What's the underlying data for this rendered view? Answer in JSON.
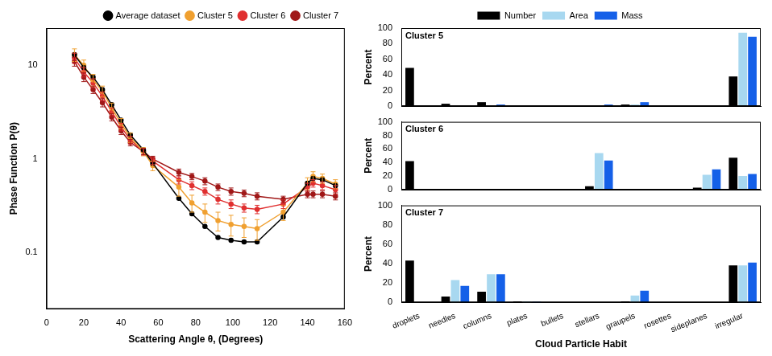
{
  "chart_data": [
    {
      "type": "line",
      "x_label": "Scattering Angle θ, (Degrees)",
      "y_label": "Phase Function P(θ)",
      "x": [
        15,
        20,
        25,
        30,
        35,
        40,
        45,
        52,
        57,
        71,
        78,
        85,
        92,
        99,
        106,
        113,
        127,
        140,
        143,
        148,
        155
      ],
      "series": [
        {
          "name": "Average dataset",
          "color": "#000000",
          "marker": "circle",
          "values": [
            13,
            9.5,
            7.5,
            5.5,
            3.8,
            2.6,
            1.8,
            1.25,
            0.9,
            0.38,
            0.26,
            0.19,
            0.145,
            0.135,
            0.13,
            0.13,
            0.24,
            0.55,
            0.62,
            0.6,
            0.52
          ]
        },
        {
          "name": "Cluster 5",
          "color": "#f0a030",
          "marker": "circle",
          "values": [
            13,
            10,
            7,
            5.3,
            3.5,
            2.4,
            1.7,
            1.2,
            0.85,
            0.5,
            0.34,
            0.27,
            0.22,
            0.2,
            0.19,
            0.18,
            0.27,
            0.55,
            0.65,
            0.62,
            0.54
          ],
          "errors": [
            2,
            1.4,
            1,
            0.7,
            0.45,
            0.3,
            0.2,
            0.12,
            0.1,
            0.1,
            0.07,
            0.06,
            0.05,
            0.05,
            0.045,
            0.045,
            0.05,
            0.08,
            0.08,
            0.07,
            0.06
          ]
        },
        {
          "name": "Cluster 6",
          "color": "#e03030",
          "marker": "circle",
          "values": [
            12,
            8.5,
            6.5,
            4.7,
            3.2,
            2.2,
            1.6,
            1.2,
            0.95,
            0.6,
            0.52,
            0.45,
            0.37,
            0.33,
            0.3,
            0.29,
            0.33,
            0.5,
            0.55,
            0.52,
            0.47
          ],
          "errors": [
            1.5,
            1,
            0.7,
            0.5,
            0.3,
            0.2,
            0.15,
            0.1,
            0.08,
            0.06,
            0.05,
            0.04,
            0.04,
            0.035,
            0.03,
            0.03,
            0.035,
            0.05,
            0.05,
            0.05,
            0.05
          ]
        },
        {
          "name": "Cluster 7",
          "color": "#a01818",
          "marker": "circle",
          "values": [
            11,
            7.5,
            5.5,
            4,
            2.8,
            2,
            1.5,
            1.2,
            1,
            0.72,
            0.65,
            0.58,
            0.5,
            0.45,
            0.43,
            0.4,
            0.37,
            0.42,
            0.42,
            0.42,
            0.4
          ],
          "errors": [
            1.2,
            0.8,
            0.5,
            0.4,
            0.25,
            0.18,
            0.12,
            0.09,
            0.07,
            0.06,
            0.05,
            0.05,
            0.04,
            0.04,
            0.035,
            0.035,
            0.03,
            0.035,
            0.035,
            0.035,
            0.035
          ]
        }
      ],
      "xlim": [
        0,
        160
      ],
      "xticks": [
        0,
        20,
        40,
        60,
        80,
        100,
        120,
        140,
        160
      ],
      "ylim": [
        0.025,
        25
      ],
      "yticks": [
        0.1,
        1,
        10
      ],
      "log": "y",
      "grid": false,
      "legend": "top-right"
    },
    {
      "type": "bar",
      "title": "Cluster 5",
      "categories": [
        "droplets",
        "needles",
        "columns",
        "plates",
        "bullets",
        "stellars",
        "graupels",
        "rosettes",
        "sideplanes",
        "irregular"
      ],
      "series": [
        {
          "name": "Number",
          "color": "#000000",
          "values": [
            49,
            3,
            5,
            1,
            0,
            1,
            2,
            0,
            0.5,
            38
          ]
        },
        {
          "name": "Area",
          "color": "#a8d8f0",
          "values": [
            0,
            1,
            1,
            0.5,
            0,
            1,
            2,
            0,
            1,
            94
          ]
        },
        {
          "name": "Mass",
          "color": "#1560e8",
          "values": [
            0,
            1,
            2,
            1,
            0,
            2,
            5,
            0,
            1,
            89
          ]
        }
      ],
      "y_label": "Percent",
      "ylim": [
        0,
        100
      ],
      "yticks": [
        0,
        20,
        40,
        60,
        80,
        100
      ],
      "grid": false,
      "legend": "top",
      "tick_labels": "y"
    },
    {
      "type": "bar",
      "title": "Cluster 6",
      "categories": [
        "droplets",
        "needles",
        "columns",
        "plates",
        "bullets",
        "stellars",
        "graupels",
        "rosettes",
        "sideplanes",
        "irregular"
      ],
      "series": [
        {
          "name": "Number",
          "color": "#000000",
          "values": [
            42,
            0,
            0.5,
            0.5,
            0,
            5,
            0,
            0,
            3,
            47
          ]
        },
        {
          "name": "Area",
          "color": "#a8d8f0",
          "values": [
            0,
            0,
            1,
            1,
            0,
            54,
            0,
            0,
            22,
            20
          ]
        },
        {
          "name": "Mass",
          "color": "#1560e8",
          "values": [
            0,
            0,
            1,
            1,
            0,
            43,
            0,
            0,
            30,
            23
          ]
        }
      ],
      "y_label": "Percent",
      "ylim": [
        0,
        100
      ],
      "yticks": [
        0,
        20,
        40,
        60,
        80,
        100
      ],
      "grid": false,
      "tick_labels": "y"
    },
    {
      "type": "bar",
      "title": "Cluster 7",
      "categories": [
        "droplets",
        "needles",
        "columns",
        "plates",
        "bullets",
        "stellars",
        "graupels",
        "rosettes",
        "sideplanes",
        "irregular"
      ],
      "series": [
        {
          "name": "Number",
          "color": "#000000",
          "values": [
            43,
            6,
            11,
            1,
            0,
            0,
            1,
            0,
            0,
            38
          ]
        },
        {
          "name": "Area",
          "color": "#a8d8f0",
          "values": [
            0,
            23,
            29,
            1,
            0,
            0,
            7,
            0,
            0,
            38
          ]
        },
        {
          "name": "Mass",
          "color": "#1560e8",
          "values": [
            0,
            17,
            29,
            0.5,
            0,
            0,
            12,
            0,
            0,
            41
          ]
        }
      ],
      "x_label": "Cloud Particle Habit",
      "y_label": "Percent",
      "ylim": [
        0,
        100
      ],
      "yticks": [
        0,
        20,
        40,
        60,
        80,
        100
      ],
      "grid": false
    }
  ]
}
